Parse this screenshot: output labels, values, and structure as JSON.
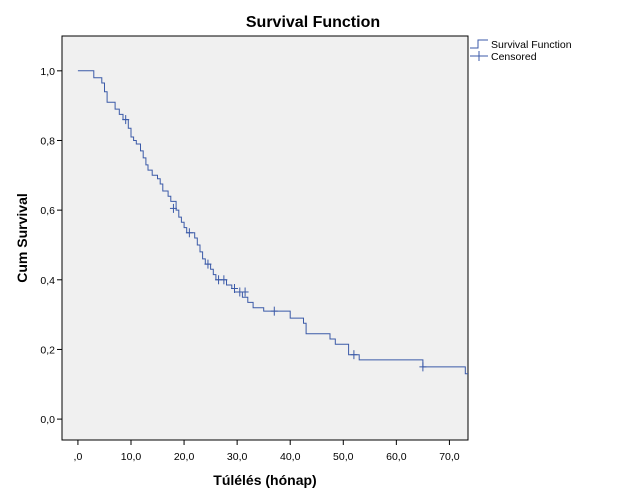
{
  "chart_data": {
    "type": "line",
    "title": "Survival Function",
    "xlabel": "Túlélés (hónap)",
    "ylabel": "Cum Survival",
    "xlim": [
      -3,
      73.5
    ],
    "ylim": [
      -0.06,
      1.1
    ],
    "x_ticks": [
      0,
      10,
      20,
      30,
      40,
      50,
      60,
      70
    ],
    "x_tick_labels": [
      ",0",
      "10,0",
      "20,0",
      "30,0",
      "40,0",
      "50,0",
      "60,0",
      "70,0"
    ],
    "y_ticks": [
      0,
      0.2,
      0.4,
      0.6,
      0.8,
      1.0
    ],
    "y_tick_labels": [
      "0,0",
      "0,2",
      "0,4",
      "0,6",
      "0,8",
      "1,0"
    ],
    "grid": false,
    "legend_position": "top-right",
    "colors": {
      "series": "#3b5aa8",
      "plot_bg": "#f0f0f0",
      "frame": "#000000"
    },
    "series": [
      {
        "name": "Survival Function",
        "step": true,
        "points": [
          [
            0,
            1.0
          ],
          [
            3,
            0.98
          ],
          [
            4.5,
            0.965
          ],
          [
            5,
            0.94
          ],
          [
            5.5,
            0.91
          ],
          [
            7,
            0.89
          ],
          [
            7.8,
            0.875
          ],
          [
            8.5,
            0.86
          ],
          [
            9.5,
            0.835
          ],
          [
            10,
            0.81
          ],
          [
            10.5,
            0.8
          ],
          [
            11,
            0.79
          ],
          [
            11.8,
            0.77
          ],
          [
            12.3,
            0.75
          ],
          [
            12.8,
            0.73
          ],
          [
            13.2,
            0.715
          ],
          [
            14,
            0.7
          ],
          [
            15,
            0.69
          ],
          [
            15.5,
            0.675
          ],
          [
            16,
            0.655
          ],
          [
            17,
            0.64
          ],
          [
            17.5,
            0.625
          ],
          [
            18.5,
            0.6
          ],
          [
            19,
            0.58
          ],
          [
            19.5,
            0.565
          ],
          [
            20,
            0.55
          ],
          [
            20.5,
            0.535
          ],
          [
            22,
            0.52
          ],
          [
            22.5,
            0.5
          ],
          [
            23,
            0.48
          ],
          [
            23.5,
            0.46
          ],
          [
            24,
            0.445
          ],
          [
            25,
            0.43
          ],
          [
            25.5,
            0.415
          ],
          [
            26,
            0.4
          ],
          [
            28,
            0.385
          ],
          [
            29,
            0.375
          ],
          [
            29.5,
            0.365
          ],
          [
            31,
            0.35
          ],
          [
            32,
            0.335
          ],
          [
            33,
            0.32
          ],
          [
            35,
            0.31
          ],
          [
            40,
            0.29
          ],
          [
            42.5,
            0.275
          ],
          [
            43,
            0.245
          ],
          [
            47.5,
            0.23
          ],
          [
            48.5,
            0.215
          ],
          [
            51,
            0.185
          ],
          [
            53,
            0.17
          ],
          [
            65,
            0.15
          ],
          [
            73,
            0.13
          ],
          [
            73.5,
            0.13
          ]
        ]
      },
      {
        "name": "Censored",
        "marker": "+",
        "points": [
          [
            9,
            0.86
          ],
          [
            18,
            0.605
          ],
          [
            21,
            0.535
          ],
          [
            24.5,
            0.445
          ],
          [
            26.5,
            0.4
          ],
          [
            27.5,
            0.4
          ],
          [
            29.5,
            0.375
          ],
          [
            30.5,
            0.365
          ],
          [
            31.5,
            0.365
          ],
          [
            37,
            0.31
          ],
          [
            52,
            0.185
          ],
          [
            65,
            0.15
          ]
        ]
      }
    ]
  }
}
